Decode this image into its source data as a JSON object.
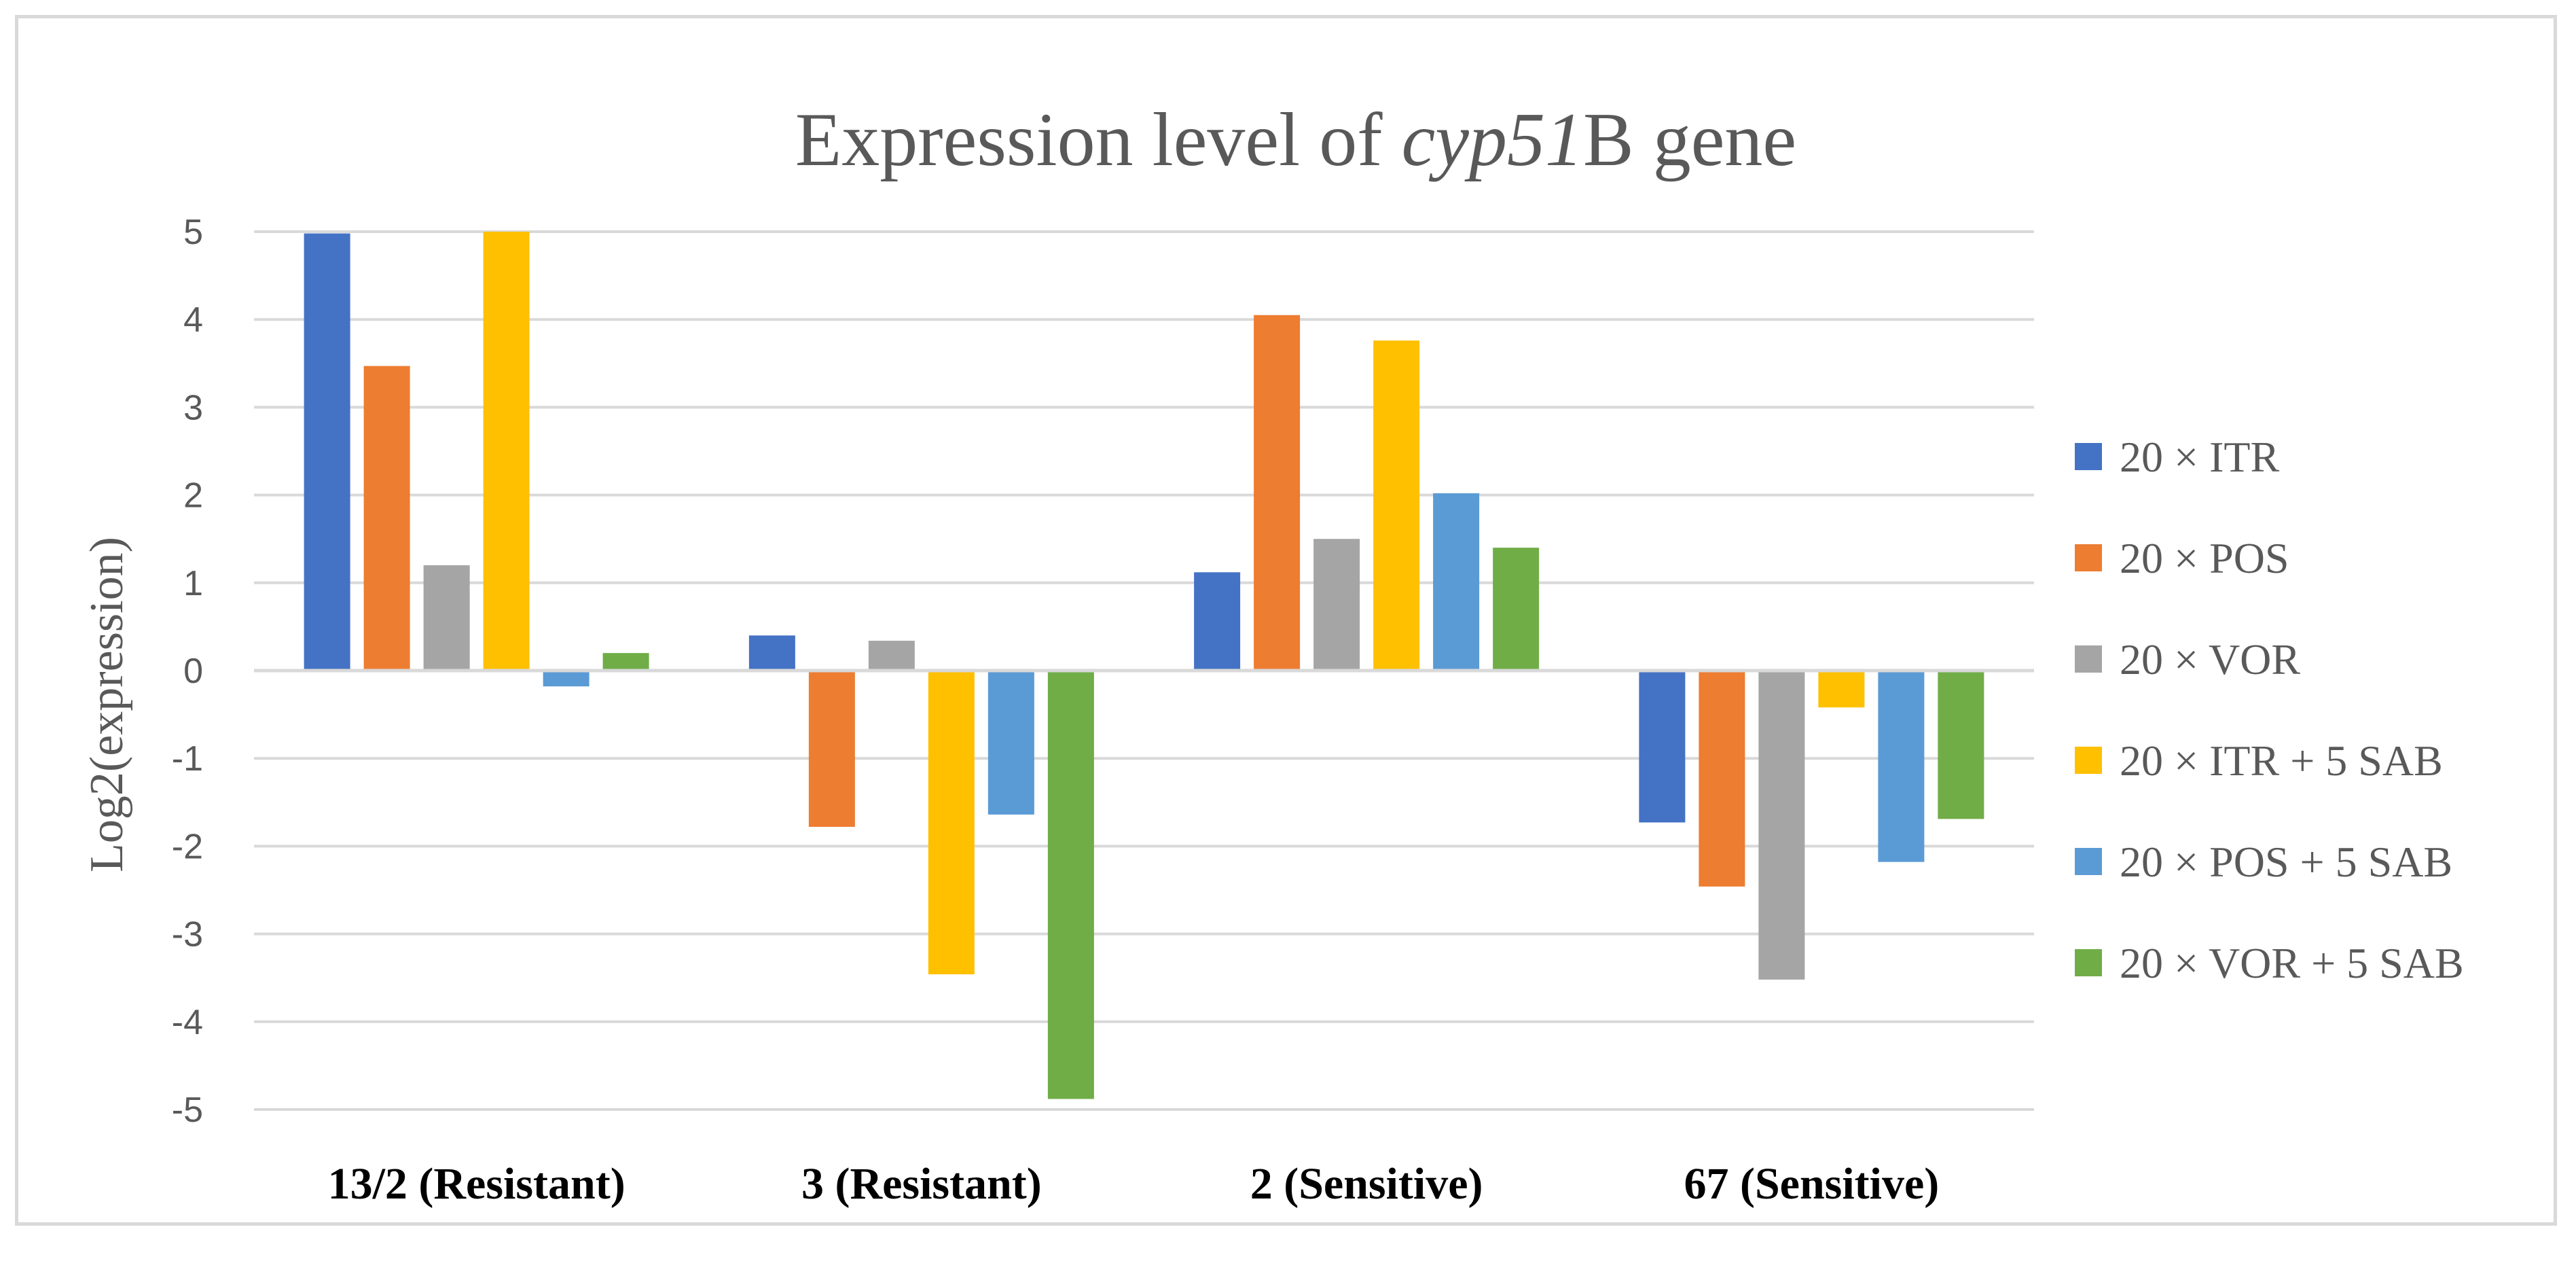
{
  "chart_data": {
    "type": "bar",
    "title": {
      "prefix": "Expression level of ",
      "gene": "cyp51",
      "suffix": "B gene"
    },
    "xlabel": "",
    "ylabel": "Log2(expression)",
    "ylim": [
      -5,
      5
    ],
    "yticks": [
      "5",
      "4",
      "3",
      "2",
      "1",
      "0",
      "-1",
      "-2",
      "-3",
      "-4",
      "-5"
    ],
    "grid": true,
    "legend_position": "right",
    "categories": [
      "13/2 (Resistant)",
      "3 (Resistant)",
      "2 (Sensitive)",
      "67 (Sensitive)"
    ],
    "series": [
      {
        "name": "20 × ITR",
        "color": "#4472c4",
        "values": [
          4.98,
          0.4,
          1.12,
          -1.73
        ]
      },
      {
        "name": "20 × POS",
        "color": "#ed7d31",
        "values": [
          3.47,
          -1.78,
          4.05,
          -2.46
        ]
      },
      {
        "name": "20 × VOR",
        "color": "#a5a5a5",
        "values": [
          1.2,
          0.34,
          1.5,
          -3.52
        ]
      },
      {
        "name": "20 × ITR + 5 SAB",
        "color": "#ffc000",
        "values": [
          5.0,
          -3.46,
          3.76,
          -0.42
        ]
      },
      {
        "name": "20 × POS + 5 SAB",
        "color": "#5b9bd5",
        "values": [
          -0.18,
          -1.64,
          2.02,
          -2.18
        ]
      },
      {
        "name": "20 × VOR + 5 SAB",
        "color": "#70ad47",
        "values": [
          0.2,
          -4.88,
          1.4,
          -1.69
        ]
      }
    ]
  }
}
